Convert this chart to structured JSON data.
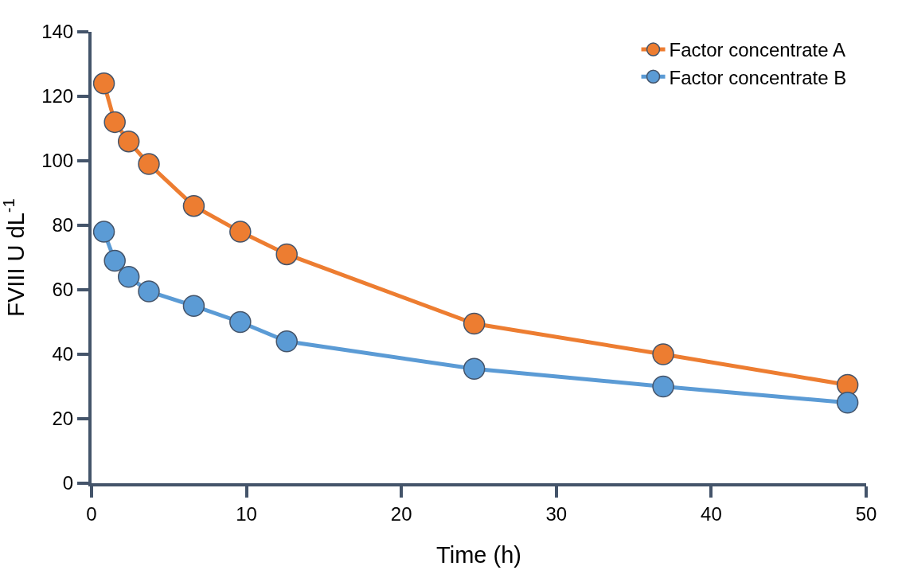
{
  "chart_data": {
    "type": "line",
    "xlabel": "Time (h)",
    "ylabel": "FVIII U dL$^{-1}$",
    "xlim": [
      0,
      50
    ],
    "xticks": [
      0,
      10,
      20,
      30,
      40,
      50
    ],
    "ylim": [
      0,
      140
    ],
    "yticks": [
      0,
      20,
      40,
      60,
      80,
      100,
      120,
      140
    ],
    "legend": "top right",
    "marker": "circle",
    "line_style": "solid",
    "series": [
      {
        "name": "Factor concentrate A",
        "color": "#ed7d31",
        "x": [
          0.8,
          1.5,
          2.4,
          3.7,
          6.6,
          9.6,
          12.6,
          24.7,
          36.9,
          48.8
        ],
        "values": [
          124,
          112,
          106,
          99,
          86,
          78,
          71,
          49.5,
          40,
          30.5
        ]
      },
      {
        "name": "Factor concentrate B",
        "color": "#5b9bd5",
        "x": [
          0.8,
          1.5,
          2.4,
          3.7,
          6.6,
          9.6,
          12.6,
          24.7,
          36.9,
          48.8
        ],
        "values": [
          78,
          69,
          64,
          59.5,
          55,
          50,
          44,
          35.5,
          30,
          25
        ]
      }
    ]
  }
}
